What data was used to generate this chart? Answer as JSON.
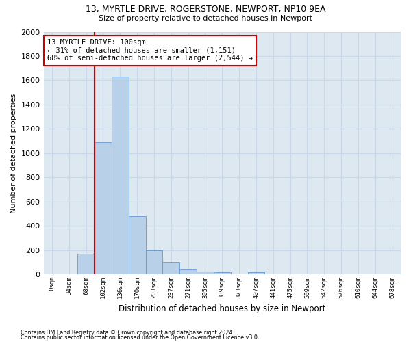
{
  "title_line1": "13, MYRTLE DRIVE, ROGERSTONE, NEWPORT, NP10 9EA",
  "title_line2": "Size of property relative to detached houses in Newport",
  "xlabel": "Distribution of detached houses by size in Newport",
  "ylabel": "Number of detached properties",
  "bar_color": "#b8d0e8",
  "bar_edge_color": "#6699cc",
  "grid_color": "#c8d8e8",
  "background_color": "#dde8f0",
  "categories": [
    "0sqm",
    "34sqm",
    "68sqm",
    "102sqm",
    "136sqm",
    "170sqm",
    "203sqm",
    "237sqm",
    "271sqm",
    "305sqm",
    "339sqm",
    "373sqm",
    "407sqm",
    "441sqm",
    "475sqm",
    "509sqm",
    "542sqm",
    "576sqm",
    "610sqm",
    "644sqm",
    "678sqm"
  ],
  "values": [
    0,
    0,
    170,
    1090,
    1630,
    480,
    200,
    100,
    38,
    25,
    18,
    0,
    18,
    0,
    0,
    0,
    0,
    0,
    0,
    0,
    0
  ],
  "property_line_x": 2.5,
  "annotation_text": "13 MYRTLE DRIVE: 100sqm\n← 31% of detached houses are smaller (1,151)\n68% of semi-detached houses are larger (2,544) →",
  "annotation_box_color": "#ffffff",
  "annotation_box_edge_color": "#cc0000",
  "vline_color": "#cc0000",
  "ylim": [
    0,
    2000
  ],
  "yticks": [
    0,
    200,
    400,
    600,
    800,
    1000,
    1200,
    1400,
    1600,
    1800,
    2000
  ],
  "footer_line1": "Contains HM Land Registry data © Crown copyright and database right 2024.",
  "footer_line2": "Contains public sector information licensed under the Open Government Licence v3.0."
}
